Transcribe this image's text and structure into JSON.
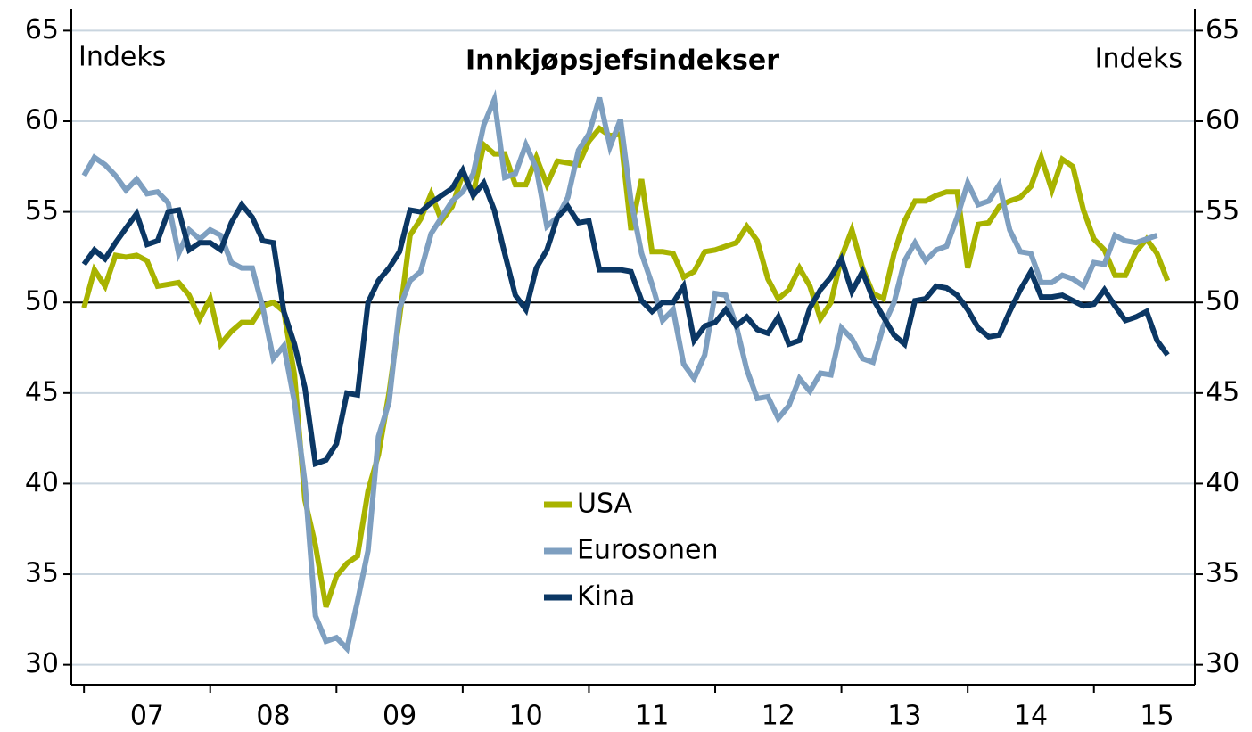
{
  "chart_data": {
    "type": "line",
    "title": "Innkjøpsjefsindekser",
    "y_label": "Indeks",
    "y2_label": "Indeks",
    "x": [
      2007,
      2007.083,
      2007.167,
      2007.25,
      2007.333,
      2007.417,
      2007.5,
      2007.583,
      2007.667,
      2007.75,
      2007.833,
      2007.917,
      2008,
      2008.083,
      2008.167,
      2008.25,
      2008.333,
      2008.417,
      2008.5,
      2008.583,
      2008.667,
      2008.75,
      2008.833,
      2008.917,
      2009,
      2009.083,
      2009.167,
      2009.25,
      2009.333,
      2009.417,
      2009.5,
      2009.583,
      2009.667,
      2009.75,
      2009.833,
      2009.917,
      2010,
      2010.083,
      2010.167,
      2010.25,
      2010.333,
      2010.417,
      2010.5,
      2010.583,
      2010.667,
      2010.75,
      2010.833,
      2010.917,
      2011,
      2011.083,
      2011.167,
      2011.25,
      2011.333,
      2011.417,
      2011.5,
      2011.583,
      2011.667,
      2011.75,
      2011.833,
      2011.917,
      2012,
      2012.083,
      2012.167,
      2012.25,
      2012.333,
      2012.417,
      2012.5,
      2012.583,
      2012.667,
      2012.75,
      2012.833,
      2012.917,
      2013,
      2013.083,
      2013.167,
      2013.25,
      2013.333,
      2013.417,
      2013.5,
      2013.583,
      2013.667,
      2013.75,
      2013.833,
      2013.917,
      2014,
      2014.083,
      2014.167,
      2014.25,
      2014.333,
      2014.417,
      2014.5,
      2014.583,
      2014.667,
      2014.75,
      2014.833,
      2014.917,
      2015,
      2015.083,
      2015.167,
      2015.25,
      2015.333,
      2015.417,
      2015.5,
      2015.583
    ],
    "series": [
      {
        "name": "USA",
        "color": "#a8b300",
        "values": [
          49.7,
          51.8,
          50.9,
          52.6,
          52.5,
          52.6,
          52.3,
          50.9,
          51.0,
          51.1,
          50.4,
          49.1,
          50.2,
          47.7,
          48.4,
          48.9,
          48.9,
          49.8,
          50.0,
          49.5,
          46.0,
          39.1,
          36.6,
          33.2,
          34.9,
          35.6,
          36.0,
          39.6,
          41.6,
          45.0,
          49.2,
          53.7,
          54.6,
          56.0,
          54.5,
          55.3,
          57.1,
          56.0,
          58.7,
          58.2,
          58.2,
          56.5,
          56.5,
          58.0,
          56.5,
          57.8,
          57.7,
          57.6,
          58.9,
          59.6,
          59.2,
          59.3,
          54.0,
          56.8,
          52.8,
          52.8,
          52.7,
          51.4,
          51.7,
          52.8,
          52.9,
          53.1,
          53.3,
          54.2,
          53.4,
          51.3,
          50.2,
          50.7,
          51.9,
          50.9,
          49.1,
          50.0,
          52.5,
          54.0,
          51.9,
          50.5,
          50.2,
          52.7,
          54.5,
          55.6,
          55.6,
          55.9,
          56.1,
          56.1,
          51.9,
          54.3,
          54.4,
          55.3,
          55.6,
          55.8,
          56.4,
          58.0,
          56.2,
          57.9,
          57.5,
          55.1,
          53.5,
          52.9,
          51.5,
          51.5,
          52.8,
          53.5,
          52.7,
          51.2
        ]
      },
      {
        "name": "Eurosonen",
        "color": "#7e9fc0",
        "values": [
          57.0,
          58.0,
          57.6,
          57.0,
          56.2,
          56.8,
          56.0,
          56.1,
          55.5,
          52.7,
          54.0,
          53.5,
          54.0,
          53.7,
          52.2,
          51.9,
          51.9,
          49.7,
          46.9,
          47.6,
          44.5,
          40.1,
          32.7,
          31.3,
          31.5,
          30.9,
          33.5,
          36.3,
          42.6,
          44.5,
          49.7,
          51.2,
          51.7,
          53.8,
          54.7,
          55.6,
          56.1,
          57.1,
          59.8,
          61.2,
          56.9,
          57.1,
          58.7,
          57.4,
          54.2,
          54.7,
          55.8,
          58.4,
          59.3,
          61.3,
          58.6,
          60.1,
          55.6,
          52.7,
          51.0,
          49.0,
          49.6,
          46.6,
          45.8,
          47.1,
          50.5,
          50.4,
          48.7,
          46.3,
          44.7,
          44.8,
          43.6,
          44.3,
          45.8,
          45.1,
          46.1,
          46.0,
          48.6,
          48.0,
          46.9,
          46.7,
          48.7,
          50.0,
          52.3,
          53.3,
          52.3,
          52.9,
          53.1,
          54.7,
          56.6,
          55.4,
          55.6,
          56.5,
          54.0,
          52.8,
          52.7,
          51.1,
          51.1,
          51.5,
          51.3,
          50.9,
          52.2,
          52.1,
          53.7,
          53.4,
          53.3,
          53.5,
          53.7,
          null
        ]
      },
      {
        "name": "Kina",
        "color": "#0b3764",
        "values": [
          52.1,
          52.9,
          52.4,
          53.3,
          54.1,
          54.9,
          53.2,
          53.4,
          55.0,
          55.1,
          52.9,
          53.3,
          53.3,
          52.9,
          54.4,
          55.4,
          54.7,
          53.4,
          53.3,
          49.5,
          47.7,
          45.3,
          41.1,
          41.3,
          42.2,
          45.0,
          44.9,
          50.0,
          51.2,
          51.9,
          52.8,
          55.1,
          55.0,
          55.5,
          55.9,
          56.3,
          57.3,
          55.9,
          56.6,
          55.1,
          52.7,
          50.4,
          49.6,
          51.9,
          52.9,
          54.7,
          55.3,
          54.4,
          54.5,
          51.8,
          51.8,
          51.8,
          51.7,
          50.1,
          49.5,
          50.0,
          50.0,
          50.9,
          47.9,
          48.7,
          48.9,
          49.6,
          48.7,
          49.2,
          48.5,
          48.3,
          49.2,
          47.7,
          47.9,
          49.7,
          50.7,
          51.4,
          52.4,
          50.6,
          51.7,
          50.2,
          49.2,
          48.2,
          47.7,
          50.1,
          50.2,
          50.9,
          50.8,
          50.4,
          49.6,
          48.6,
          48.1,
          48.2,
          49.5,
          50.7,
          51.7,
          50.3,
          50.3,
          50.4,
          50.1,
          49.8,
          49.9,
          50.7,
          49.8,
          49.0,
          49.2,
          49.5,
          47.9,
          47.1
        ]
      }
    ],
    "xlim": [
      2006.9,
      2015.8
    ],
    "xticks": [
      2007,
      2008,
      2009,
      2010,
      2011,
      2012,
      2013,
      2014,
      2015
    ],
    "xtick_labels": [
      {
        "value": 2007.5,
        "label": "07"
      },
      {
        "value": 2008.5,
        "label": "08"
      },
      {
        "value": 2009.5,
        "label": "09"
      },
      {
        "value": 2010.5,
        "label": "10"
      },
      {
        "value": 2011.5,
        "label": "11"
      },
      {
        "value": 2012.5,
        "label": "12"
      },
      {
        "value": 2013.5,
        "label": "13"
      },
      {
        "value": 2014.5,
        "label": "14"
      },
      {
        "value": 2015.5,
        "label": "15"
      }
    ],
    "ylim": [
      28.9,
      66.2
    ],
    "yticks": [
      30,
      35,
      40,
      45,
      50,
      55,
      60,
      65
    ],
    "y2lim": [
      28.9,
      66.2
    ],
    "y2ticks": [
      30,
      35,
      40,
      45,
      50,
      55,
      60,
      65
    ],
    "reference_line": 50,
    "grid": true,
    "grid_color": "#c9d5df"
  }
}
